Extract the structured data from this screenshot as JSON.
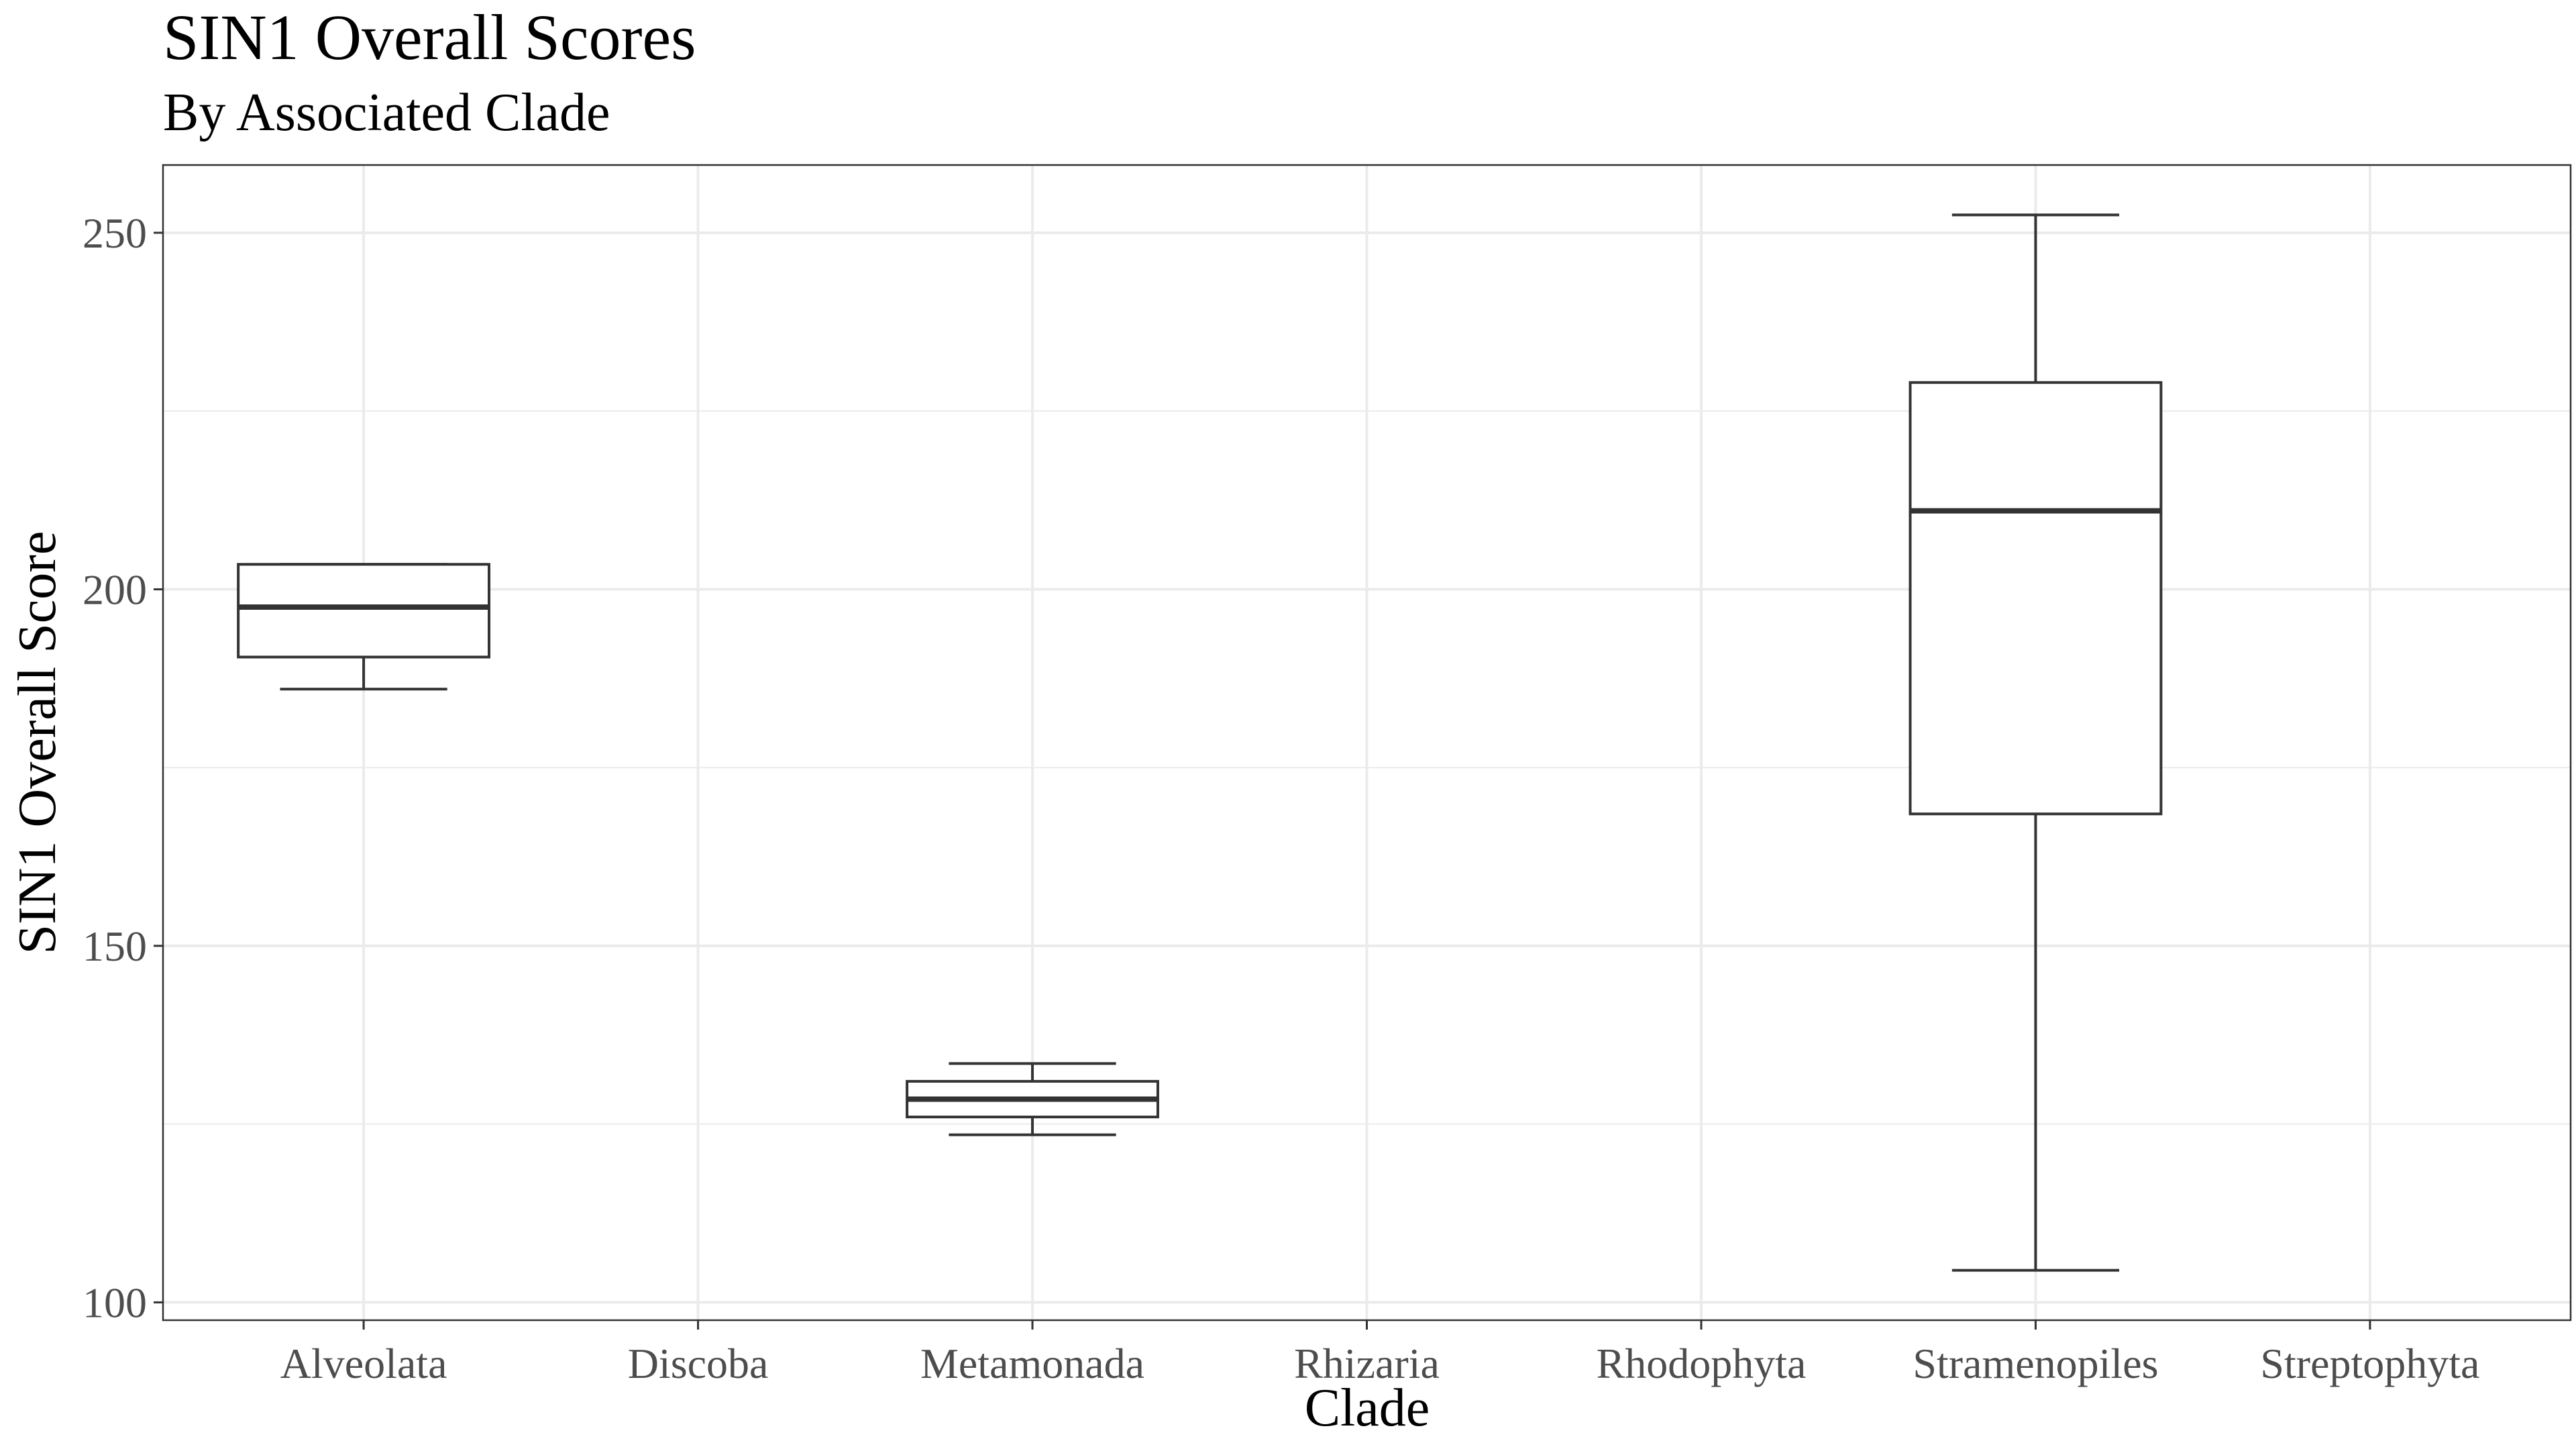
{
  "chart_data": {
    "type": "boxplot",
    "title": "SIN1 Overall Scores",
    "subtitle": "By Associated Clade",
    "xlabel": "Clade",
    "ylabel": "SIN1 Overall Score",
    "categories": [
      "Alveolata",
      "Discoba",
      "Metamonada",
      "Rhizaria",
      "Rhodophyta",
      "Stramenopiles",
      "Streptophyta"
    ],
    "ylim": [
      97.5,
      259.5
    ],
    "yticks": [
      100,
      150,
      200,
      250
    ],
    "grid": true,
    "boxes": [
      {
        "category": "Alveolata",
        "min": 186,
        "q1": 190.5,
        "median": 197.5,
        "q3": 203.5,
        "max": 203.5
      },
      {
        "category": "Discoba",
        "min": null,
        "q1": null,
        "median": null,
        "q3": null,
        "max": null
      },
      {
        "category": "Metamonada",
        "min": 123.5,
        "q1": 126,
        "median": 128.5,
        "q3": 131,
        "max": 133.5
      },
      {
        "category": "Rhizaria",
        "min": null,
        "q1": null,
        "median": null,
        "q3": null,
        "max": null
      },
      {
        "category": "Rhodophyta",
        "min": null,
        "q1": null,
        "median": null,
        "q3": null,
        "max": null
      },
      {
        "category": "Stramenopiles",
        "min": 104.5,
        "q1": 168.5,
        "median": 211,
        "q3": 229,
        "max": 252.5
      },
      {
        "category": "Streptophyta",
        "min": null,
        "q1": null,
        "median": null,
        "q3": null,
        "max": null
      }
    ],
    "colors": {
      "box_stroke": "#333333",
      "grid": "#ebebeb",
      "panel_border": "#333333",
      "tick_text": "#4d4d4d",
      "title_text": "#000000"
    }
  }
}
